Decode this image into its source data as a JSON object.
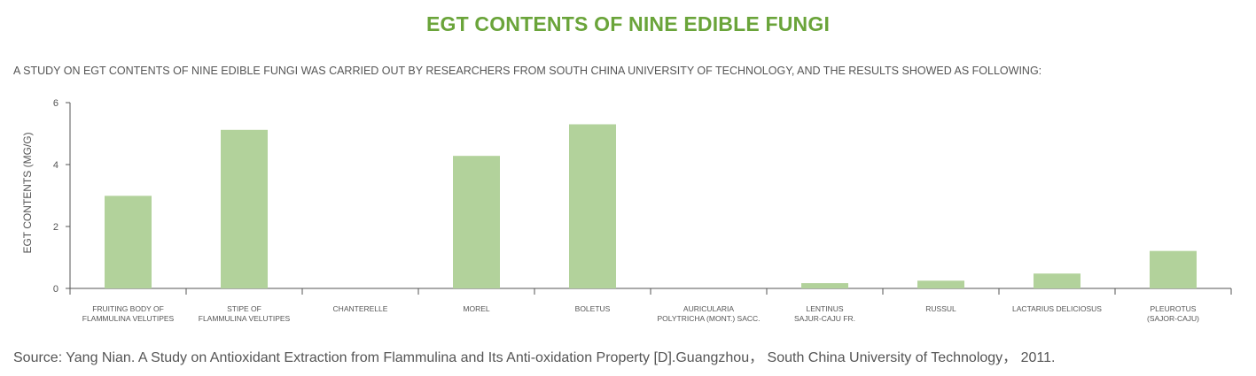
{
  "page": {
    "title": "EGT CONTENTS OF NINE EDIBLE FUNGI",
    "subtitle": "A STUDY ON EGT CONTENTS OF NINE EDIBLE FUNGI WAS CARRIED OUT BY RESEARCHERS FROM SOUTH CHINA UNIVERSITY OF TECHNOLOGY, AND THE RESULTS SHOWED AS FOLLOWING:",
    "source": "Source: Yang Nian. A Study on Antioxidant Extraction from Flammulina and Its Anti-oxidation Property [D].Guangzhou， South China University of Technology， 2011."
  },
  "colors": {
    "title": "#6aa43a",
    "bar": "#b2d29b",
    "text": "#555555",
    "axis": "#555555"
  },
  "chart_data": {
    "type": "bar",
    "title": "EGT CONTENTS OF NINE EDIBLE FUNGI",
    "xlabel": "",
    "ylabel": "EGT CONTENTS (MG/G)",
    "ylim": [
      0,
      6
    ],
    "yticks": [
      0,
      2,
      4,
      6
    ],
    "grid": false,
    "legend": "none",
    "categories": [
      [
        "FRUITING BODY OF",
        "FLAMMULINA VELUTIPES"
      ],
      [
        "STIPE OF",
        "FLAMMULINA VELUTIPES"
      ],
      [
        "CHANTERELLE"
      ],
      [
        "MOREL"
      ],
      [
        "BOLETUS"
      ],
      [
        "AURICULARIA",
        "POLYTRICHA (MONT.) SACC."
      ],
      [
        "LENTINUS",
        "SAJUR-CAJU FR."
      ],
      [
        "RUSSUL"
      ],
      [
        "LACTARIUS DELICIOSUS"
      ],
      [
        "PLEUROTUS",
        "(SAJOR-CAJU)"
      ]
    ],
    "values": [
      2.99,
      5.12,
      0,
      4.28,
      5.3,
      0,
      0.17,
      0.25,
      0.48,
      1.21
    ]
  }
}
